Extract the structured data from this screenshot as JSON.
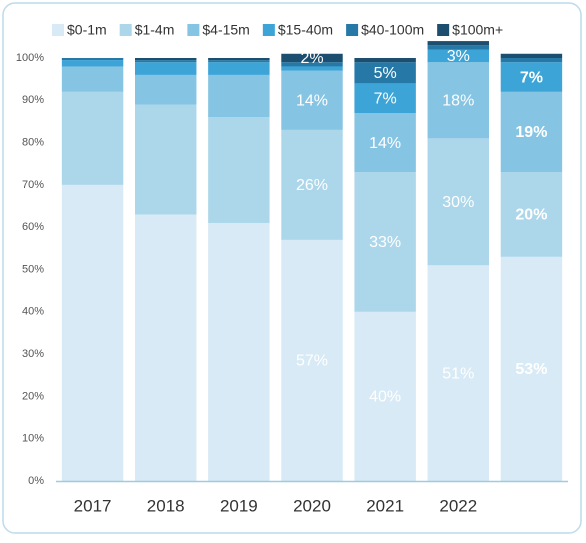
{
  "chart_data": {
    "type": "stacked_bar",
    "categories": [
      "2017",
      "2018",
      "2019",
      "2020",
      "2021",
      "2022",
      null
    ],
    "series": [
      {
        "name": "$0-1m",
        "color": "#d7eaf5",
        "values": [
          70,
          63,
          61,
          57,
          40,
          51,
          53
        ],
        "value_labels": [
          null,
          null,
          null,
          "57%",
          "40%",
          "51%",
          "53%"
        ]
      },
      {
        "name": "$1-4m",
        "color": "#acd6ea",
        "values": [
          22,
          26,
          25,
          26,
          33,
          30,
          20
        ],
        "value_labels": [
          null,
          null,
          null,
          "26%",
          "33%",
          "30%",
          "20%"
        ]
      },
      {
        "name": "$4-15m",
        "color": "#86c4e3",
        "values": [
          6,
          7,
          10,
          14,
          14,
          18,
          19
        ],
        "value_labels": [
          null,
          null,
          null,
          "14%",
          "14%",
          "18%",
          "19%"
        ]
      },
      {
        "name": "$15-40m",
        "color": "#3ca4d7",
        "values": [
          1.5,
          3,
          3,
          1,
          7,
          3,
          7
        ],
        "value_labels": [
          null,
          null,
          null,
          null,
          "7%",
          "3%",
          "7%"
        ]
      },
      {
        "name": "$40-100m",
        "color": "#2679a7",
        "values": [
          0.5,
          0.5,
          0.5,
          1,
          5,
          1,
          1
        ],
        "value_labels": [
          null,
          null,
          null,
          null,
          "5%",
          null,
          null
        ]
      },
      {
        "name": "$100m+",
        "color": "#1c4e70",
        "values": [
          0,
          0.5,
          0.5,
          2,
          1,
          1,
          1
        ],
        "value_labels": [
          null,
          null,
          null,
          "2%",
          null,
          null,
          null
        ]
      }
    ],
    "ylim": [
      0,
      100
    ],
    "yticks": [
      {
        "value": 0,
        "label": "0%"
      },
      {
        "value": 10,
        "label": "10%"
      },
      {
        "value": 20,
        "label": "20%"
      },
      {
        "value": 30,
        "label": "30%"
      },
      {
        "value": 40,
        "label": "40%"
      },
      {
        "value": 50,
        "label": "50%"
      },
      {
        "value": 60,
        "label": "60%"
      },
      {
        "value": 70,
        "label": "70%"
      },
      {
        "value": 80,
        "label": "80%"
      },
      {
        "value": 90,
        "label": "90%"
      },
      {
        "value": 100,
        "label": "100%"
      }
    ]
  }
}
